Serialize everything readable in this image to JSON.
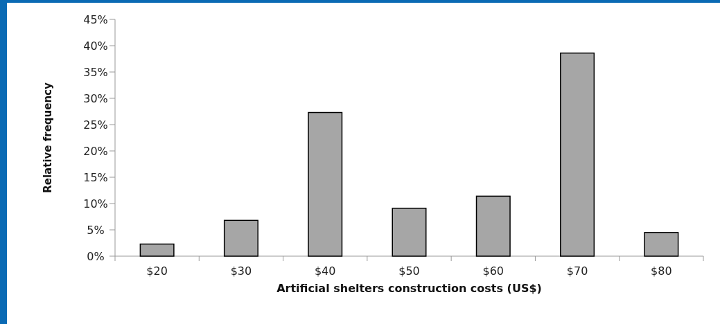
{
  "chart_data": {
    "type": "bar",
    "xlabel": "Artificial shelters construction costs (US$)",
    "ylabel": "Relative frequency",
    "categories": [
      "$20",
      "$30",
      "$40",
      "$50",
      "$60",
      "$70",
      "$80"
    ],
    "values": [
      2.3,
      6.8,
      27.3,
      9.1,
      11.4,
      38.6,
      4.5
    ],
    "color": "#a6a6a6",
    "ylim": [
      0,
      45
    ],
    "yticks": [
      {
        "value": 0,
        "label": "0%"
      },
      {
        "value": 5,
        "label": "5%"
      },
      {
        "value": 10,
        "label": "10%"
      },
      {
        "value": 15,
        "label": "15%"
      },
      {
        "value": 20,
        "label": "20%"
      },
      {
        "value": 25,
        "label": "25%"
      },
      {
        "value": 30,
        "label": "30%"
      },
      {
        "value": 35,
        "label": "35%"
      },
      {
        "value": 40,
        "label": "40%"
      },
      {
        "value": 45,
        "label": "45%"
      }
    ],
    "grid": false
  }
}
